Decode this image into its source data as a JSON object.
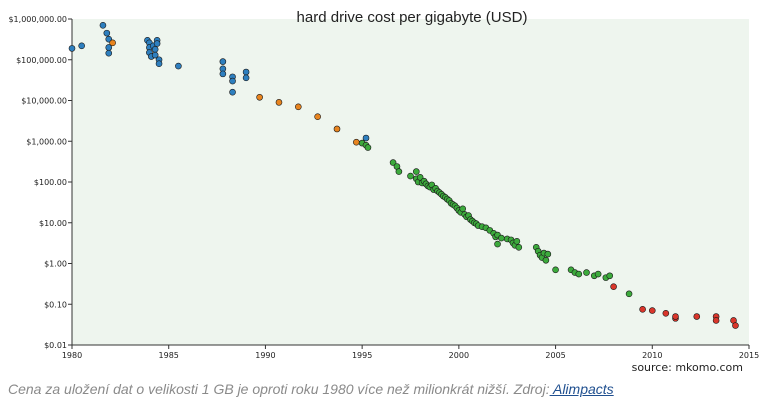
{
  "chart_data": {
    "type": "scatter",
    "title": "hard drive cost per gigabyte (USD)",
    "source": "source: mkomo.com",
    "x_scale": "linear",
    "y_scale": "log",
    "xlim": [
      1980,
      2015
    ],
    "ylim": [
      0.01,
      1000000
    ],
    "x_ticks": [
      "1980",
      "1985",
      "1990",
      "1995",
      "2000",
      "2005",
      "2010",
      "2015"
    ],
    "y_ticks": [
      "$0.01",
      "$0.10",
      "$1.00",
      "$10.00",
      "$100.00",
      "$1,000.00",
      "$10,000.00",
      "$100,000.00",
      "$1,000,000.00"
    ],
    "background_color": "#eef5ee",
    "series": [
      {
        "color": "#2e7fbf",
        "points": [
          [
            1980.0,
            190000
          ],
          [
            1980.5,
            220000
          ],
          [
            1981.6,
            700000
          ],
          [
            1981.8,
            450000
          ],
          [
            1981.9,
            320000
          ],
          [
            1981.9,
            200000
          ],
          [
            1981.9,
            145000
          ],
          [
            1983.9,
            300000
          ],
          [
            1984.0,
            260000
          ],
          [
            1984.0,
            200000
          ],
          [
            1984.0,
            150000
          ],
          [
            1984.1,
            120000
          ],
          [
            1984.2,
            220000
          ],
          [
            1984.3,
            180000
          ],
          [
            1984.3,
            130000
          ],
          [
            1984.4,
            300000
          ],
          [
            1984.4,
            250000
          ],
          [
            1984.5,
            100000
          ],
          [
            1984.5,
            80000
          ],
          [
            1985.5,
            70000
          ],
          [
            1987.8,
            90000
          ],
          [
            1987.8,
            60000
          ],
          [
            1987.8,
            45000
          ],
          [
            1988.3,
            38000
          ],
          [
            1988.3,
            30000
          ],
          [
            1988.3,
            16000
          ],
          [
            1989.0,
            50000
          ],
          [
            1989.0,
            36000
          ],
          [
            1995.2,
            1200
          ]
        ]
      },
      {
        "color": "#e8841f",
        "points": [
          [
            1982.1,
            260000
          ],
          [
            1989.7,
            12000
          ],
          [
            1990.7,
            9000
          ],
          [
            1991.7,
            7000
          ],
          [
            1992.7,
            4000
          ],
          [
            1993.7,
            2000
          ],
          [
            1994.7,
            950
          ]
        ]
      },
      {
        "color": "#3caa3c",
        "points": [
          [
            1995.0,
            900
          ],
          [
            1995.2,
            800
          ],
          [
            1995.3,
            700
          ],
          [
            1996.6,
            300
          ],
          [
            1996.8,
            240
          ],
          [
            1996.9,
            180
          ],
          [
            1997.5,
            140
          ],
          [
            1997.8,
            180
          ],
          [
            1997.8,
            120
          ],
          [
            1997.9,
            100
          ],
          [
            1998.0,
            130
          ],
          [
            1998.1,
            95
          ],
          [
            1998.2,
            105
          ],
          [
            1998.3,
            90
          ],
          [
            1998.4,
            80
          ],
          [
            1998.5,
            75
          ],
          [
            1998.6,
            85
          ],
          [
            1998.7,
            65
          ],
          [
            1998.8,
            70
          ],
          [
            1998.9,
            60
          ],
          [
            1999.0,
            55
          ],
          [
            1999.1,
            50
          ],
          [
            1999.2,
            45
          ],
          [
            1999.3,
            42
          ],
          [
            1999.4,
            38
          ],
          [
            1999.5,
            35
          ],
          [
            1999.6,
            30
          ],
          [
            1999.7,
            28
          ],
          [
            1999.8,
            26
          ],
          [
            1999.9,
            23
          ],
          [
            2000.0,
            20
          ],
          [
            2000.1,
            18
          ],
          [
            2000.2,
            22
          ],
          [
            2000.3,
            16
          ],
          [
            2000.4,
            14
          ],
          [
            2000.5,
            15
          ],
          [
            2000.6,
            12
          ],
          [
            2000.7,
            11
          ],
          [
            2000.8,
            10
          ],
          [
            2000.9,
            9.5
          ],
          [
            2001.0,
            8.5
          ],
          [
            2001.2,
            8
          ],
          [
            2001.4,
            7.5
          ],
          [
            2001.6,
            6.5
          ],
          [
            2001.8,
            5.5
          ],
          [
            2001.9,
            4.5
          ],
          [
            2002.0,
            5
          ],
          [
            2002.2,
            4.2
          ],
          [
            2002.5,
            4
          ],
          [
            2002.7,
            3.8
          ],
          [
            2002.8,
            3.2
          ],
          [
            2002.9,
            2.8
          ],
          [
            2003.0,
            3.5
          ],
          [
            2003.1,
            2.5
          ],
          [
            2002.0,
            3
          ],
          [
            2004.0,
            2.5
          ],
          [
            2004.1,
            2
          ],
          [
            2004.2,
            1.6
          ],
          [
            2004.3,
            1.4
          ],
          [
            2004.4,
            1.8
          ],
          [
            2004.5,
            1.2
          ],
          [
            2004.6,
            1.7
          ],
          [
            2005.0,
            0.7
          ],
          [
            2005.8,
            0.7
          ],
          [
            2006.0,
            0.6
          ],
          [
            2006.2,
            0.55
          ],
          [
            2006.6,
            0.6
          ],
          [
            2007.0,
            0.5
          ],
          [
            2007.2,
            0.55
          ],
          [
            2007.6,
            0.45
          ],
          [
            2007.8,
            0.5
          ],
          [
            2008.8,
            0.18
          ]
        ]
      },
      {
        "color": "#d9362b",
        "points": [
          [
            2008.0,
            0.27
          ],
          [
            2009.5,
            0.075
          ],
          [
            2010.0,
            0.07
          ],
          [
            2010.7,
            0.06
          ],
          [
            2011.2,
            0.045
          ],
          [
            2011.2,
            0.05
          ],
          [
            2012.3,
            0.05
          ],
          [
            2013.3,
            0.05
          ],
          [
            2013.3,
            0.04
          ],
          [
            2014.2,
            0.04
          ],
          [
            2014.3,
            0.03
          ]
        ]
      }
    ]
  },
  "caption": {
    "text": "Cena za uložení dat o velikosti 1 GB je oproti roku 1980 více než milionkrát nižší. Zdroj:",
    "link": " Alimpacts"
  }
}
